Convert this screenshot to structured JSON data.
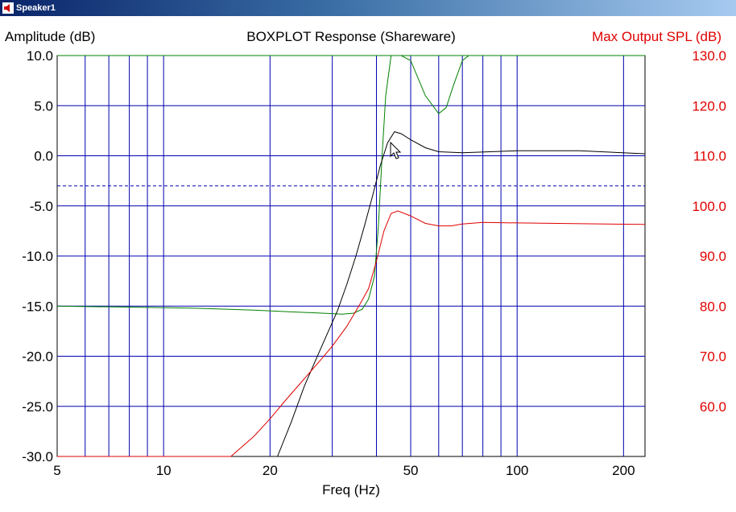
{
  "window": {
    "title": "Speaker1",
    "icon": "speaker-icon"
  },
  "colors": {
    "grid": "#0000b0",
    "green": "#008000",
    "black": "#000000",
    "red": "#e00000",
    "spl_axis": "#e00000"
  },
  "chart_data": {
    "type": "line",
    "title": "BOXPLOT  Response (Shareware)",
    "xlabel": "Freq (Hz)",
    "ylabel": "Amplitude (dB)",
    "y2label": "Max Output SPL (dB)",
    "xscale": "log",
    "xlim": [
      5,
      230
    ],
    "ylim": [
      -30,
      10
    ],
    "y2lim": [
      50,
      130
    ],
    "grid": true,
    "reference_line": {
      "y": -3,
      "style": "dashed"
    },
    "x_tick_labels": [
      {
        "x": 5,
        "label": "5"
      },
      {
        "x": 10,
        "label": "10"
      },
      {
        "x": 20,
        "label": "20"
      },
      {
        "x": 50,
        "label": "50"
      },
      {
        "x": 100,
        "label": "100"
      },
      {
        "x": 200,
        "label": "200"
      }
    ],
    "y_tick_labels": [
      "10.0",
      "5.0",
      "0.0",
      "-5.0",
      "-10.0",
      "-15.0",
      "-20.0",
      "-25.0",
      "-30.0"
    ],
    "y_ticks": [
      10,
      5,
      0,
      -5,
      -10,
      -15,
      -20,
      -25,
      -30
    ],
    "y2_tick_labels": [
      "130.0",
      "120.0",
      "110.0",
      "100.0",
      "90.0",
      "80.0",
      "70.0",
      "60.0"
    ],
    "y2_ticks": [
      130,
      120,
      110,
      100,
      90,
      80,
      70,
      60
    ],
    "series": [
      {
        "color": "green",
        "x": [
          5,
          8,
          12,
          18,
          24,
          28,
          32,
          34.5,
          36.5,
          38,
          39.5,
          40.5,
          41.5,
          42.5,
          44,
          47,
          50,
          55,
          60,
          63,
          66,
          70,
          73,
          100,
          230
        ],
        "y": [
          -15.0,
          -15.1,
          -15.2,
          -15.4,
          -15.6,
          -15.7,
          -15.8,
          -15.7,
          -15.3,
          -14.3,
          -12.0,
          -7.0,
          0.0,
          6.0,
          10.0,
          10.0,
          9.5,
          6.0,
          4.2,
          4.8,
          7.0,
          9.5,
          10.0,
          10.0,
          10.0
        ]
      },
      {
        "color": "black",
        "x": [
          21,
          23,
          25,
          27,
          29,
          31,
          33,
          35,
          37,
          39,
          41,
          43,
          45,
          47,
          50,
          55,
          60,
          70,
          100,
          150,
          230
        ],
        "y": [
          -30.0,
          -26.5,
          -23.0,
          -20.3,
          -17.8,
          -15.5,
          -12.8,
          -10.0,
          -7.0,
          -4.0,
          -1.0,
          1.3,
          2.4,
          2.2,
          1.6,
          0.8,
          0.4,
          0.3,
          0.5,
          0.5,
          0.2
        ]
      },
      {
        "color": "red",
        "x": [
          5,
          15.5,
          18,
          20,
          22,
          25,
          28,
          30,
          33,
          36,
          38,
          40,
          42,
          44,
          46,
          50,
          55,
          60,
          65,
          70,
          80,
          100,
          230
        ],
        "y2": [
          50.0,
          50.0,
          54.0,
          57.5,
          61.0,
          65.5,
          69.5,
          72.0,
          76.0,
          80.5,
          83.5,
          89.0,
          95.0,
          98.5,
          99.0,
          98.0,
          96.5,
          96.0,
          96.0,
          96.4,
          96.7,
          96.6,
          96.3
        ]
      }
    ]
  }
}
